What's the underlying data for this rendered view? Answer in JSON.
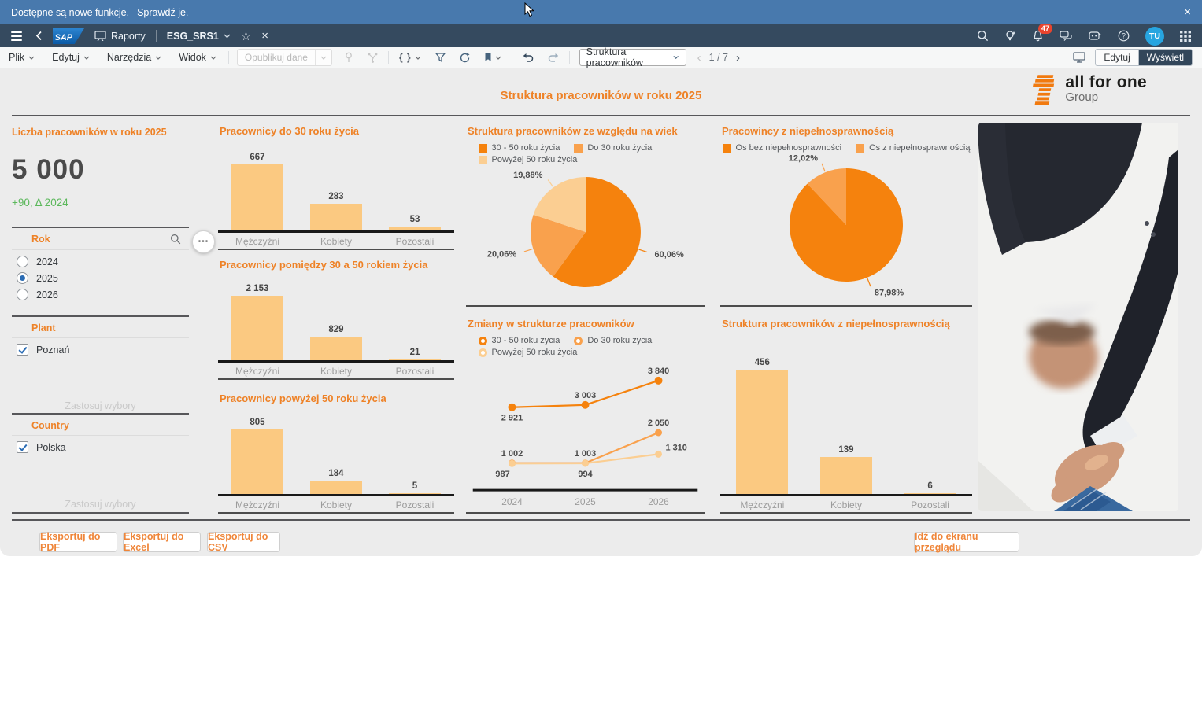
{
  "notification": {
    "message": "Dostępne są nowe funkcje.",
    "link": "Sprawdź je.",
    "close": "×"
  },
  "shell": {
    "product": "SAP",
    "nav_section": "Raporty",
    "report": "ESG_SRS1",
    "badge": "47",
    "user": "TU"
  },
  "toolbar": {
    "menus": [
      "Plik",
      "Edytuj",
      "Narzędzia",
      "Widok"
    ],
    "publish": "Opublikuj dane",
    "braces": "{ }",
    "page_select": "Struktura pracowników",
    "pager": "1 / 7",
    "prev": "‹",
    "next": "›",
    "edit": "Edytuj",
    "view": "Wyświetl"
  },
  "header": {
    "title": "Struktura pracowników w roku 2025",
    "logo_title": "all for one",
    "logo_subtitle": "Group"
  },
  "kpi": {
    "title": "Liczba pracowników w roku 2025",
    "value": "5 000",
    "delta": "+90, Δ 2024"
  },
  "filters": {
    "more": "•••",
    "rok": {
      "label": "Rok",
      "options": [
        {
          "label": "2024",
          "selected": false
        },
        {
          "label": "2025",
          "selected": true
        },
        {
          "label": "2026",
          "selected": false
        }
      ]
    },
    "plant": {
      "label": "Plant",
      "apply": "Zastosuj wybory",
      "options": [
        {
          "label": "Poznań",
          "checked": true
        }
      ]
    },
    "country": {
      "label": "Country",
      "apply": "Zastosuj wybory",
      "options": [
        {
          "label": "Polska",
          "checked": true
        }
      ]
    }
  },
  "footer": {
    "export_pdf": "Eksportuj do PDF",
    "export_excel": "Eksportuj do Excel",
    "export_csv": "Eksportuj do CSV",
    "overview": "Idź do ekranu przeglądu"
  },
  "colors": {
    "accent": "#ee8227",
    "dark": "#f5820d",
    "mid": "#f9a14d",
    "light": "#fbce92",
    "bar": "#fbc981",
    "green": "#5cb85c",
    "shell": "#354a5f",
    "notif": "#4879ad"
  },
  "chart_data": [
    {
      "id": "bar_do30",
      "type": "bar",
      "title": "Pracownicy do 30 roku życia",
      "categories": [
        "Mężczyźni",
        "Kobiety",
        "Pozostali"
      ],
      "values": [
        667,
        283,
        53
      ],
      "labels": [
        "667",
        "283",
        "53"
      ],
      "ylim": [
        0,
        667
      ],
      "grid": false
    },
    {
      "id": "bar_30_50",
      "type": "bar",
      "title": "Pracownicy pomiędzy 30 a 50 rokiem życia",
      "categories": [
        "Mężczyźni",
        "Kobiety",
        "Pozostali"
      ],
      "values": [
        2153,
        829,
        21
      ],
      "labels": [
        "2 153",
        "829",
        "21"
      ],
      "ylim": [
        0,
        2153
      ],
      "grid": false
    },
    {
      "id": "bar_pow50",
      "type": "bar",
      "title": "Pracownicy powyżej 50 roku życia",
      "categories": [
        "Mężczyźni",
        "Kobiety",
        "Pozostali"
      ],
      "values": [
        805,
        184,
        5
      ],
      "labels": [
        "805",
        "184",
        "5"
      ],
      "ylim": [
        0,
        805
      ],
      "grid": false
    },
    {
      "id": "pie_wiek",
      "type": "pie",
      "title": "Struktura pracowników ze względu na wiek",
      "legend_position": "top",
      "slices": [
        {
          "name": "30 - 50 roku życia",
          "value": 60.06,
          "label": "60,06%",
          "color": "dark"
        },
        {
          "name": "Do 30 roku życia",
          "value": 20.06,
          "label": "20,06%",
          "color": "mid"
        },
        {
          "name": "Powyżej 50 roku życia",
          "value": 19.88,
          "label": "19,88%",
          "color": "light"
        }
      ]
    },
    {
      "id": "line_zmiany",
      "type": "line",
      "title": "Zmiany w strukturze pracowników",
      "legend_position": "top",
      "x": [
        "2024",
        "2025",
        "2026"
      ],
      "ylim": [
        900,
        4000
      ],
      "series": [
        {
          "name": "30 - 50 roku życia",
          "color": "dark",
          "values": [
            2921,
            3003,
            3840
          ],
          "labels": [
            "2 921",
            "3 003",
            "3 840"
          ],
          "label_pos": [
            "below",
            "above",
            "above"
          ]
        },
        {
          "name": "Do 30 roku życia",
          "color": "mid",
          "values": [
            1002,
            1003,
            2050
          ],
          "labels": [
            "1 002",
            "1 003",
            "2 050"
          ],
          "label_pos": [
            "above",
            "above",
            "above"
          ]
        },
        {
          "name": "Powyżej 50 roku życia",
          "color": "light",
          "values": [
            987,
            994,
            1310
          ],
          "labels": [
            "987",
            "994",
            "1 310"
          ],
          "label_pos": [
            "below-left",
            "below",
            "right"
          ]
        }
      ]
    },
    {
      "id": "pie_niepelno",
      "type": "pie",
      "title": "Pracowincy z niepełnosprawnością",
      "legend_position": "top",
      "slices": [
        {
          "name": "Os bez niepełnosprawności",
          "value": 87.98,
          "label": "87,98%",
          "color": "dark"
        },
        {
          "name": "Os z niepełnosprawnością",
          "value": 12.02,
          "label": "12,02%",
          "color": "mid"
        }
      ]
    },
    {
      "id": "bar_niepelno",
      "type": "bar",
      "title": "Struktura pracowników z niepełnosprawnością",
      "categories": [
        "Mężczyźni",
        "Kobiety",
        "Pozostali"
      ],
      "values": [
        456,
        139,
        6
      ],
      "labels": [
        "456",
        "139",
        "6"
      ],
      "ylim": [
        0,
        456
      ],
      "grid": false
    }
  ]
}
